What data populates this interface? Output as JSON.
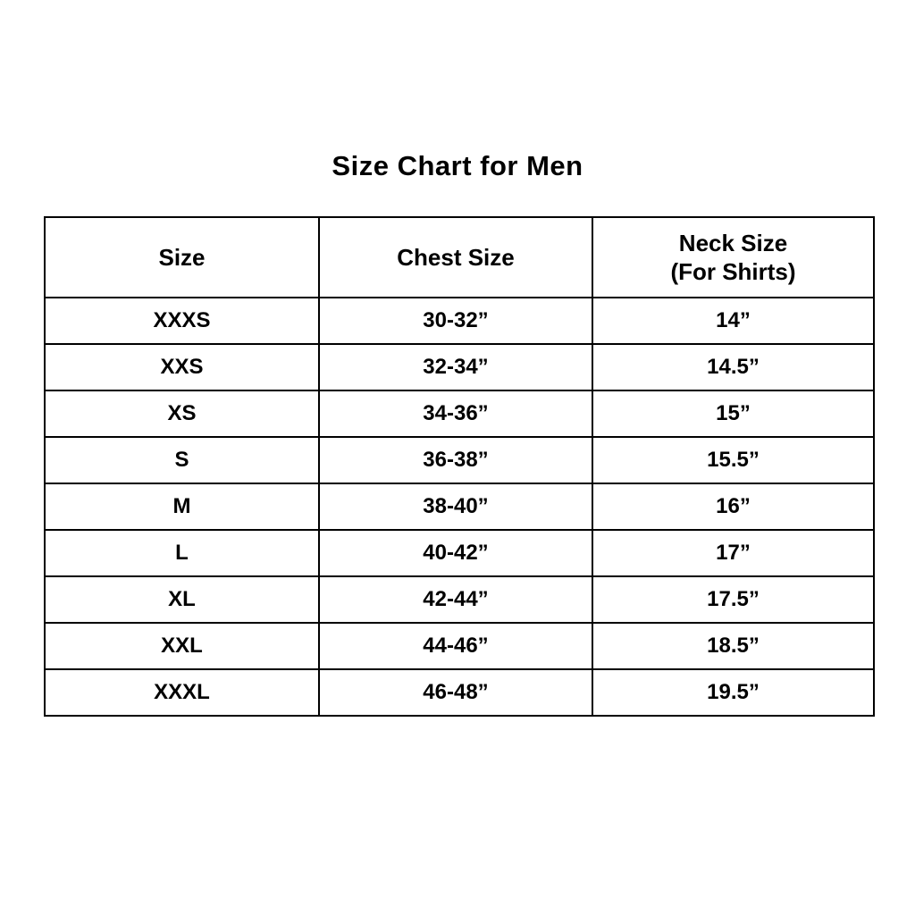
{
  "title": "Size Chart for Men",
  "table": {
    "headers": {
      "size": "Size",
      "chest": "Chest Size",
      "neck_line1": "Neck Size",
      "neck_line2": "(For Shirts)"
    },
    "rows": [
      {
        "size": "XXXS",
        "chest": "30-32”",
        "neck": "14”"
      },
      {
        "size": "XXS",
        "chest": "32-34”",
        "neck": "14.5”"
      },
      {
        "size": "XS",
        "chest": "34-36”",
        "neck": "15”"
      },
      {
        "size": "S",
        "chest": "36-38”",
        "neck": "15.5”"
      },
      {
        "size": "M",
        "chest": "38-40”",
        "neck": "16”"
      },
      {
        "size": "L",
        "chest": "40-42”",
        "neck": "17”"
      },
      {
        "size": "XL",
        "chest": "42-44”",
        "neck": "17.5”"
      },
      {
        "size": "XXL",
        "chest": "44-46”",
        "neck": "18.5”"
      },
      {
        "size": "XXXL",
        "chest": "46-48”",
        "neck": "19.5”"
      }
    ]
  }
}
